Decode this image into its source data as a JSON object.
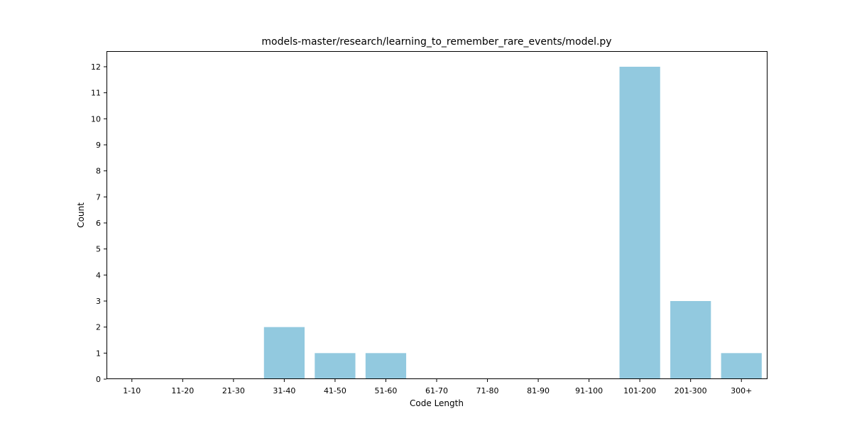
{
  "chart_data": {
    "type": "bar",
    "title": "models-master/research/learning_to_remember_rare_events/model.py",
    "xlabel": "Code Length",
    "ylabel": "Count",
    "categories": [
      "1-10",
      "11-20",
      "21-30",
      "31-40",
      "41-50",
      "51-60",
      "61-70",
      "71-80",
      "81-90",
      "91-100",
      "101-200",
      "201-300",
      "300+"
    ],
    "values": [
      0,
      0,
      0,
      2,
      1,
      1,
      0,
      0,
      0,
      0,
      12,
      3,
      1
    ],
    "ylim": [
      0,
      12.6
    ],
    "yticks": [
      0,
      1,
      2,
      3,
      4,
      5,
      6,
      7,
      8,
      9,
      10,
      11,
      12
    ],
    "bar_color": "#92c9df",
    "grid": false,
    "legend": "none"
  }
}
